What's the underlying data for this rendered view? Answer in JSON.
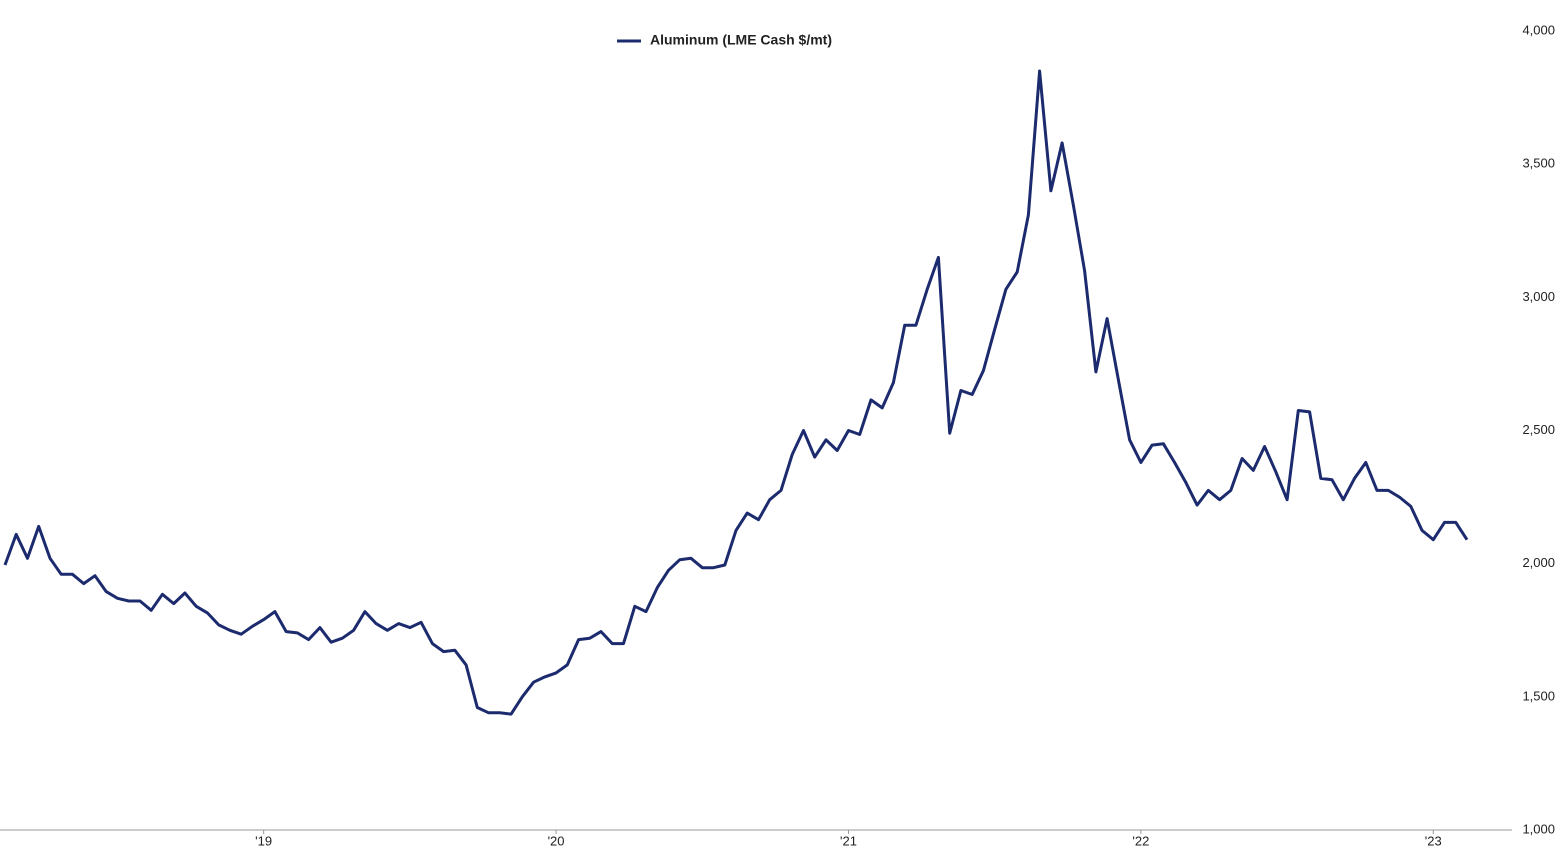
{
  "chart_data": {
    "type": "line",
    "categories": [
      null,
      null,
      null,
      null,
      null,
      null,
      null,
      null,
      null,
      null,
      null,
      null,
      null,
      null,
      null,
      null,
      null,
      null,
      null,
      null,
      null,
      null,
      null,
      "'19",
      null,
      null,
      null,
      null,
      null,
      null,
      null,
      null,
      null,
      null,
      null,
      null,
      null,
      null,
      null,
      null,
      null,
      null,
      null,
      null,
      null,
      null,
      null,
      null,
      null,
      "'20",
      null,
      null,
      null,
      null,
      null,
      null,
      null,
      null,
      null,
      null,
      null,
      null,
      null,
      null,
      null,
      null,
      null,
      null,
      null,
      null,
      null,
      null,
      null,
      null,
      null,
      "'21",
      null,
      null,
      null,
      null,
      null,
      null,
      null,
      null,
      null,
      null,
      null,
      null,
      null,
      null,
      null,
      null,
      null,
      null,
      null,
      null,
      null,
      null,
      null,
      null,
      null,
      "'22",
      null,
      null,
      null,
      null,
      null,
      null,
      null,
      null,
      null,
      null,
      null,
      null,
      null,
      null,
      null,
      null,
      null,
      null,
      null,
      null,
      null,
      null,
      null,
      null,
      null,
      "'23",
      null,
      null,
      null
    ],
    "series": [
      {
        "name": "Aluminum (LME Cash $/mt)",
        "color": "#1c2a6e",
        "values": [
          1995,
          2110,
          2020,
          2140,
          2020,
          1960,
          1960,
          1925,
          1955,
          1895,
          1870,
          1860,
          1860,
          1825,
          1885,
          1850,
          1890,
          1840,
          1815,
          1770,
          1750,
          1735,
          1765,
          1790,
          1820,
          1745,
          1740,
          1715,
          1760,
          1705,
          1720,
          1750,
          1820,
          1775,
          1750,
          1775,
          1760,
          1780,
          1700,
          1670,
          1675,
          1620,
          1460,
          1440,
          1440,
          1435,
          1500,
          1555,
          1575,
          1590,
          1620,
          1715,
          1720,
          1745,
          1700,
          1700,
          1840,
          1820,
          1910,
          1975,
          2015,
          2020,
          1985,
          1985,
          1995,
          2125,
          2190,
          2165,
          2240,
          2275,
          2410,
          2500,
          2400,
          2465,
          2425,
          2500,
          2485,
          2615,
          2585,
          2680,
          2895,
          2895,
          3030,
          3150,
          2490,
          2650,
          2635,
          2725,
          2880,
          3030,
          3095,
          3310,
          3850,
          3400,
          3580,
          3345,
          3100,
          2720,
          2920,
          2690,
          2465,
          2380,
          2445,
          2450,
          2380,
          2305,
          2220,
          2275,
          2240,
          2275,
          2395,
          2350,
          2440,
          2345,
          2240,
          2575,
          2570,
          2320,
          2315,
          2240,
          2320,
          2380,
          2275,
          2275,
          2250,
          2215,
          2125,
          2090,
          2155,
          2155,
          2090
        ]
      }
    ],
    "ylim": [
      1000,
      4000
    ],
    "yticks": [
      {
        "value": 1000,
        "label": "1,000"
      },
      {
        "value": 1500,
        "label": "1,500"
      },
      {
        "value": 2000,
        "label": "2,000"
      },
      {
        "value": 2500,
        "label": "2,500"
      },
      {
        "value": 3000,
        "label": "3,000"
      },
      {
        "value": 3500,
        "label": "3,500"
      },
      {
        "value": 4000,
        "label": "4,000"
      }
    ],
    "grid": false
  }
}
